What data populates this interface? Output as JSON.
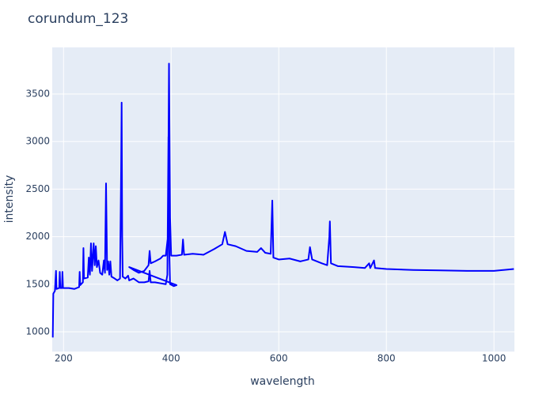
{
  "chart_data": {
    "type": "line",
    "title": "corundum_123",
    "x_label": "wavelength",
    "y_label": "intensity",
    "x": [
      180,
      181,
      184,
      186,
      187,
      192,
      193,
      194,
      197,
      198,
      199,
      210,
      220,
      229,
      230,
      231,
      236,
      237,
      238,
      245,
      247,
      249,
      251,
      253,
      256,
      258,
      260,
      262,
      265,
      268,
      272,
      275,
      277,
      279,
      281,
      283,
      285,
      287,
      289,
      295,
      300,
      305,
      307,
      308,
      309,
      310,
      315,
      320,
      322,
      330,
      340,
      350,
      358,
      360,
      362,
      370,
      380,
      390,
      393,
      395,
      396,
      398,
      405,
      410,
      322,
      330,
      340,
      350,
      358,
      360,
      362,
      370,
      380,
      385,
      390,
      394,
      396,
      398,
      400,
      410,
      420,
      422,
      424,
      440,
      460,
      480,
      495,
      500,
      505,
      520,
      540,
      560,
      567,
      575,
      585,
      588,
      590,
      600,
      620,
      640,
      655,
      658,
      662,
      680,
      690,
      694,
      695,
      697,
      710,
      740,
      760,
      768,
      770,
      777,
      779,
      800,
      850,
      900,
      950,
      1000,
      1037
    ],
    "values": [
      940,
      1400,
      1430,
      1640,
      1450,
      1460,
      1630,
      1460,
      1460,
      1630,
      1460,
      1460,
      1450,
      1470,
      1630,
      1490,
      1520,
      1880,
      1560,
      1570,
      1780,
      1600,
      1930,
      1640,
      1930,
      1700,
      1900,
      1680,
      1750,
      1620,
      1600,
      1750,
      1620,
      2560,
      1650,
      1740,
      1600,
      1740,
      1580,
      1560,
      1540,
      1560,
      2680,
      3410,
      2000,
      1580,
      1560,
      1590,
      1540,
      1560,
      1520,
      1520,
      1530,
      1640,
      1520,
      1520,
      1510,
      1500,
      1600,
      3050,
      2000,
      1500,
      1480,
      1490,
      1680,
      1650,
      1620,
      1640,
      1700,
      1850,
      1720,
      1740,
      1770,
      1800,
      1800,
      2000,
      3820,
      2200,
      1800,
      1800,
      1810,
      1970,
      1810,
      1820,
      1810,
      1870,
      1920,
      2050,
      1920,
      1900,
      1850,
      1840,
      1880,
      1830,
      1820,
      2380,
      1780,
      1760,
      1770,
      1740,
      1760,
      1890,
      1760,
      1720,
      1700,
      2000,
      2160,
      1720,
      1690,
      1680,
      1670,
      1720,
      1670,
      1750,
      1670,
      1660,
      1650,
      1645,
      1640,
      1640,
      1660
    ],
    "color": "#0000ff",
    "xlim": [
      179,
      1038
    ],
    "ylim": [
      792,
      3990
    ],
    "xticks": [
      200,
      400,
      600,
      800,
      1000
    ],
    "yticks": [
      1000,
      1500,
      2000,
      2500,
      3000,
      3500
    ],
    "grid": true
  }
}
